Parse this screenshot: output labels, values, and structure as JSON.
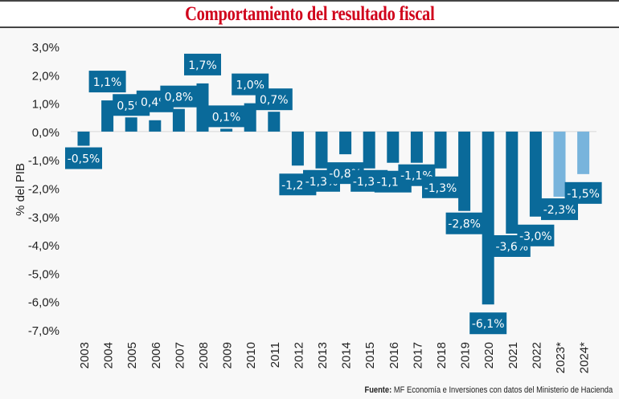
{
  "header": {
    "title": "Comportamiento del resultado fiscal"
  },
  "source": {
    "label": "Fuente:",
    "text": "MF Economía e Inversiones con datos del Ministerio de Hacienda"
  },
  "colors": {
    "actual": "#0a6a9a",
    "projected": "#78b4dc",
    "title": "#d0021b",
    "label_text": "#ffffff"
  },
  "chart_data": {
    "type": "bar",
    "title": "Comportamiento del resultado fiscal",
    "xlabel": "",
    "ylabel": "% del PIB",
    "ylim": [
      -7,
      3
    ],
    "yticks": [
      3,
      2,
      1,
      0,
      -1,
      -2,
      -3,
      -4,
      -5,
      -6,
      -7
    ],
    "ytick_labels": [
      "3,0%",
      "2,0%",
      "1,0%",
      "0,0%",
      "-1,0%",
      "-2,0%",
      "-3,0%",
      "-4,0%",
      "-5,0%",
      "-6,0%",
      "-7,0%"
    ],
    "grid": false,
    "categories": [
      "2003",
      "2004",
      "2005",
      "2006",
      "2007",
      "2008",
      "2009",
      "2010",
      "2011",
      "2012",
      "2013",
      "2014",
      "2015",
      "2016",
      "2017",
      "2018",
      "2019",
      "2020",
      "2021",
      "2022",
      "2023*",
      "2024*"
    ],
    "values": [
      -0.5,
      1.1,
      0.5,
      0.4,
      0.8,
      1.7,
      0.1,
      1.0,
      0.7,
      -1.2,
      -1.3,
      -0.8,
      -1.3,
      -1.1,
      -1.1,
      -1.3,
      -2.8,
      -6.1,
      -3.6,
      -3.0,
      -2.3,
      -1.5
    ],
    "data_labels": [
      "-0,5%",
      "1,1%",
      "0,5%",
      "0,4%",
      "0,8%",
      "1,7%",
      "0,1%",
      "1,0%",
      "0,7%",
      "-1,2%",
      "-1,3%",
      "-0,8%",
      "-1,3%",
      "-1,1%",
      "-1,1%",
      "-1,3%",
      "-2,8%",
      "-6,1%",
      "-3,6%",
      "-3,0%",
      "-2,3%",
      "-1,5%"
    ],
    "projected": [
      false,
      false,
      false,
      false,
      false,
      false,
      false,
      false,
      false,
      false,
      false,
      false,
      false,
      false,
      false,
      false,
      false,
      false,
      false,
      false,
      true,
      true
    ]
  }
}
